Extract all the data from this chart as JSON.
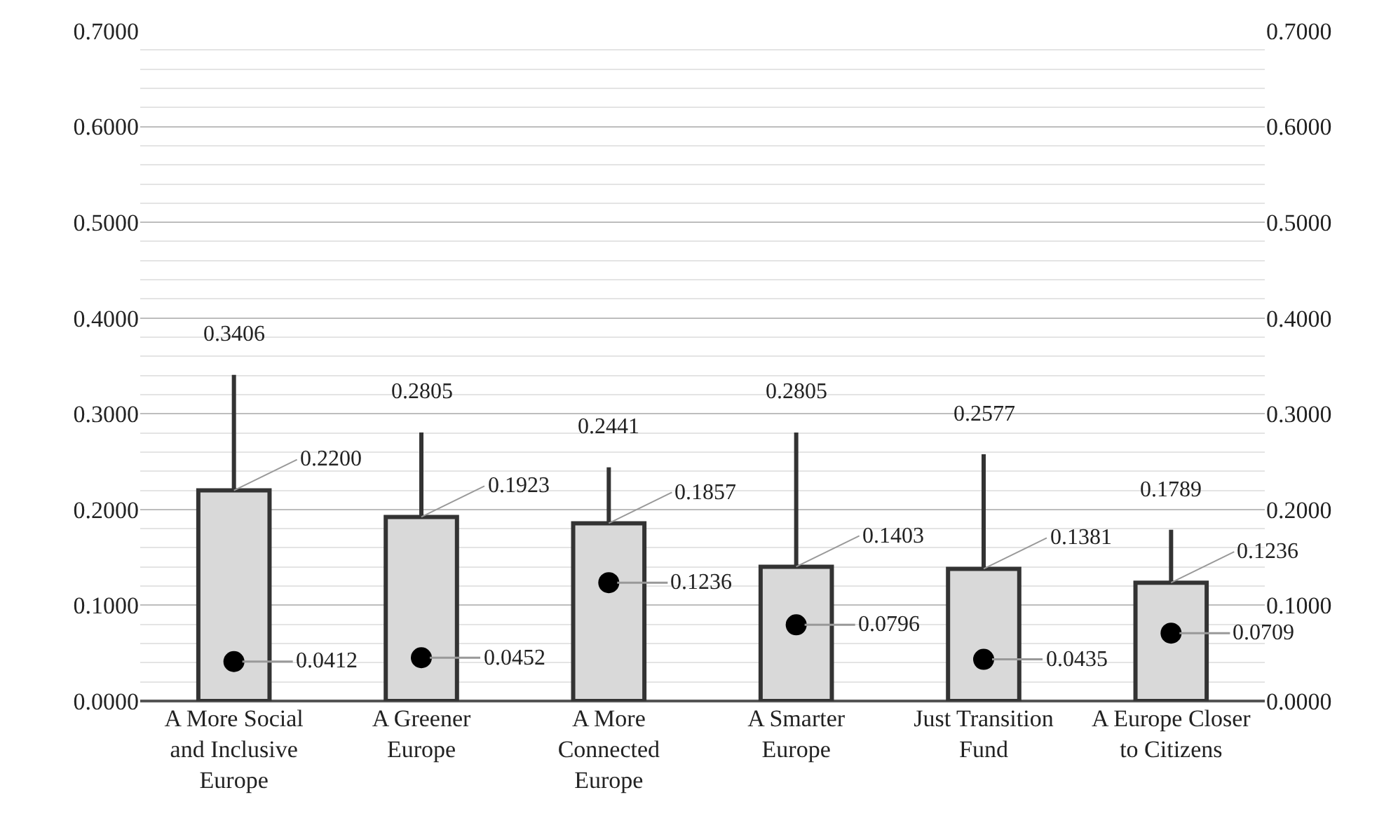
{
  "chart_data": {
    "type": "bar",
    "categories": [
      "A More Social and Inclusive Europe",
      "A Greener Europe",
      "A More Connected Europe",
      "A Smarter Europe",
      "Just Transition Fund",
      "A Europe Closer to Citizens"
    ],
    "series": [
      {
        "color": "#d9d9d9",
        "values": [
          0.22,
          0.1923,
          0.1857,
          0.1403,
          0.1381,
          0.1236
        ],
        "value_labels": [
          "0.2200",
          "0.1923",
          "0.1857",
          "0.1403",
          "0.1381",
          "0.1236"
        ],
        "errors": [
          [
            0.22,
            0.3406
          ],
          [
            0.1923,
            0.2805
          ],
          [
            0.1857,
            0.2441
          ],
          [
            0.1403,
            0.2805
          ],
          [
            0.1381,
            0.2577
          ],
          [
            0.1236,
            0.1789
          ]
        ]
      },
      {
        "type": "scatter",
        "color": "#000000",
        "marker": "circle",
        "x": [
          "A More Social and Inclusive Europe",
          "A Greener Europe",
          "A More Connected Europe",
          "A Smarter Europe",
          "Just Transition Fund",
          "A Europe Closer to Citizens"
        ],
        "values": [
          0.0412,
          0.0452,
          0.1236,
          0.0796,
          0.0435,
          0.0709
        ],
        "value_labels": [
          "0.0412",
          "0.0452",
          "0.1236",
          "0.0796",
          "0.0435",
          "0.0709"
        ]
      }
    ],
    "annotations": [
      {
        "text": "0.3406",
        "x": "A More Social and Inclusive Europe",
        "y": 0.3406
      },
      {
        "text": "0.2805",
        "x": "A Greener Europe",
        "y": 0.2805
      },
      {
        "text": "0.2441",
        "x": "A More Connected Europe",
        "y": 0.2441
      },
      {
        "text": "0.2805",
        "x": "A Smarter Europe",
        "y": 0.2805
      },
      {
        "text": "0.2577",
        "x": "Just Transition Fund",
        "y": 0.2577
      },
      {
        "text": "0.1789",
        "x": "A Europe Closer to Citizens",
        "y": 0.1789
      }
    ],
    "ylim": [
      0,
      0.7
    ],
    "yticks": [
      {
        "value": 0,
        "label": "0.0000"
      },
      {
        "value": 0.1,
        "label": "0.1000"
      },
      {
        "value": 0.2,
        "label": "0.2000"
      },
      {
        "value": 0.3,
        "label": "0.3000"
      },
      {
        "value": 0.4,
        "label": "0.4000"
      },
      {
        "value": 0.5,
        "label": "0.5000"
      },
      {
        "value": 0.6,
        "label": "0.6000"
      },
      {
        "value": 0.7,
        "label": "0.7000"
      }
    ],
    "y2lim": [
      0,
      0.7
    ],
    "y2ticks": [
      {
        "value": 0,
        "label": "0.0000"
      },
      {
        "value": 0.1,
        "label": "0.1000"
      },
      {
        "value": 0.2,
        "label": "0.2000"
      },
      {
        "value": 0.3,
        "label": "0.3000"
      },
      {
        "value": 0.4,
        "label": "0.4000"
      },
      {
        "value": 0.5,
        "label": "0.5000"
      },
      {
        "value": 0.6,
        "label": "0.6000"
      },
      {
        "value": 0.7,
        "label": "0.7000"
      }
    ],
    "grid": "y"
  }
}
